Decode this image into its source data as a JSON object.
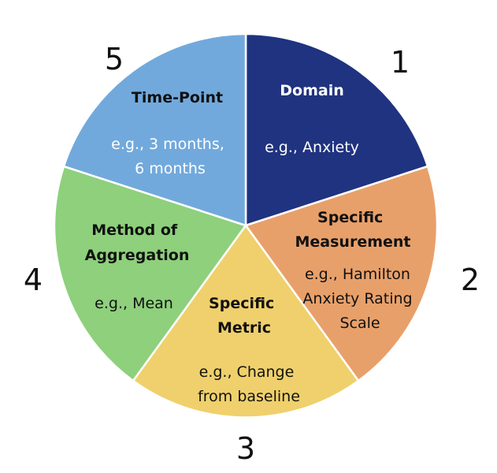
{
  "segments": [
    {
      "number": "1",
      "title_lines": [
        "Domain"
      ],
      "example_lines": [
        "e.g., Anxiety"
      ],
      "color": "#1f3380"
    },
    {
      "number": "2",
      "title_lines": [
        "Specific",
        "Measurement"
      ],
      "example_lines": [
        "e.g., Hamilton",
        "Anxiety Rating",
        "Scale"
      ],
      "color": "#e8a06a"
    },
    {
      "number": "3",
      "title_lines": [
        "Specific",
        "Metric"
      ],
      "example_lines": [
        "e.g., Change",
        "from baseline"
      ],
      "color": "#efd06c"
    },
    {
      "number": "4",
      "title_lines": [
        "Method of",
        "Aggregation"
      ],
      "example_lines": [
        "e.g., Mean"
      ],
      "color": "#8ed07c"
    },
    {
      "number": "5",
      "title_lines": [
        "Time-Point"
      ],
      "example_lines": [
        "e.g., 3 months,",
        "6 months"
      ],
      "color": "#72a9dc"
    }
  ]
}
